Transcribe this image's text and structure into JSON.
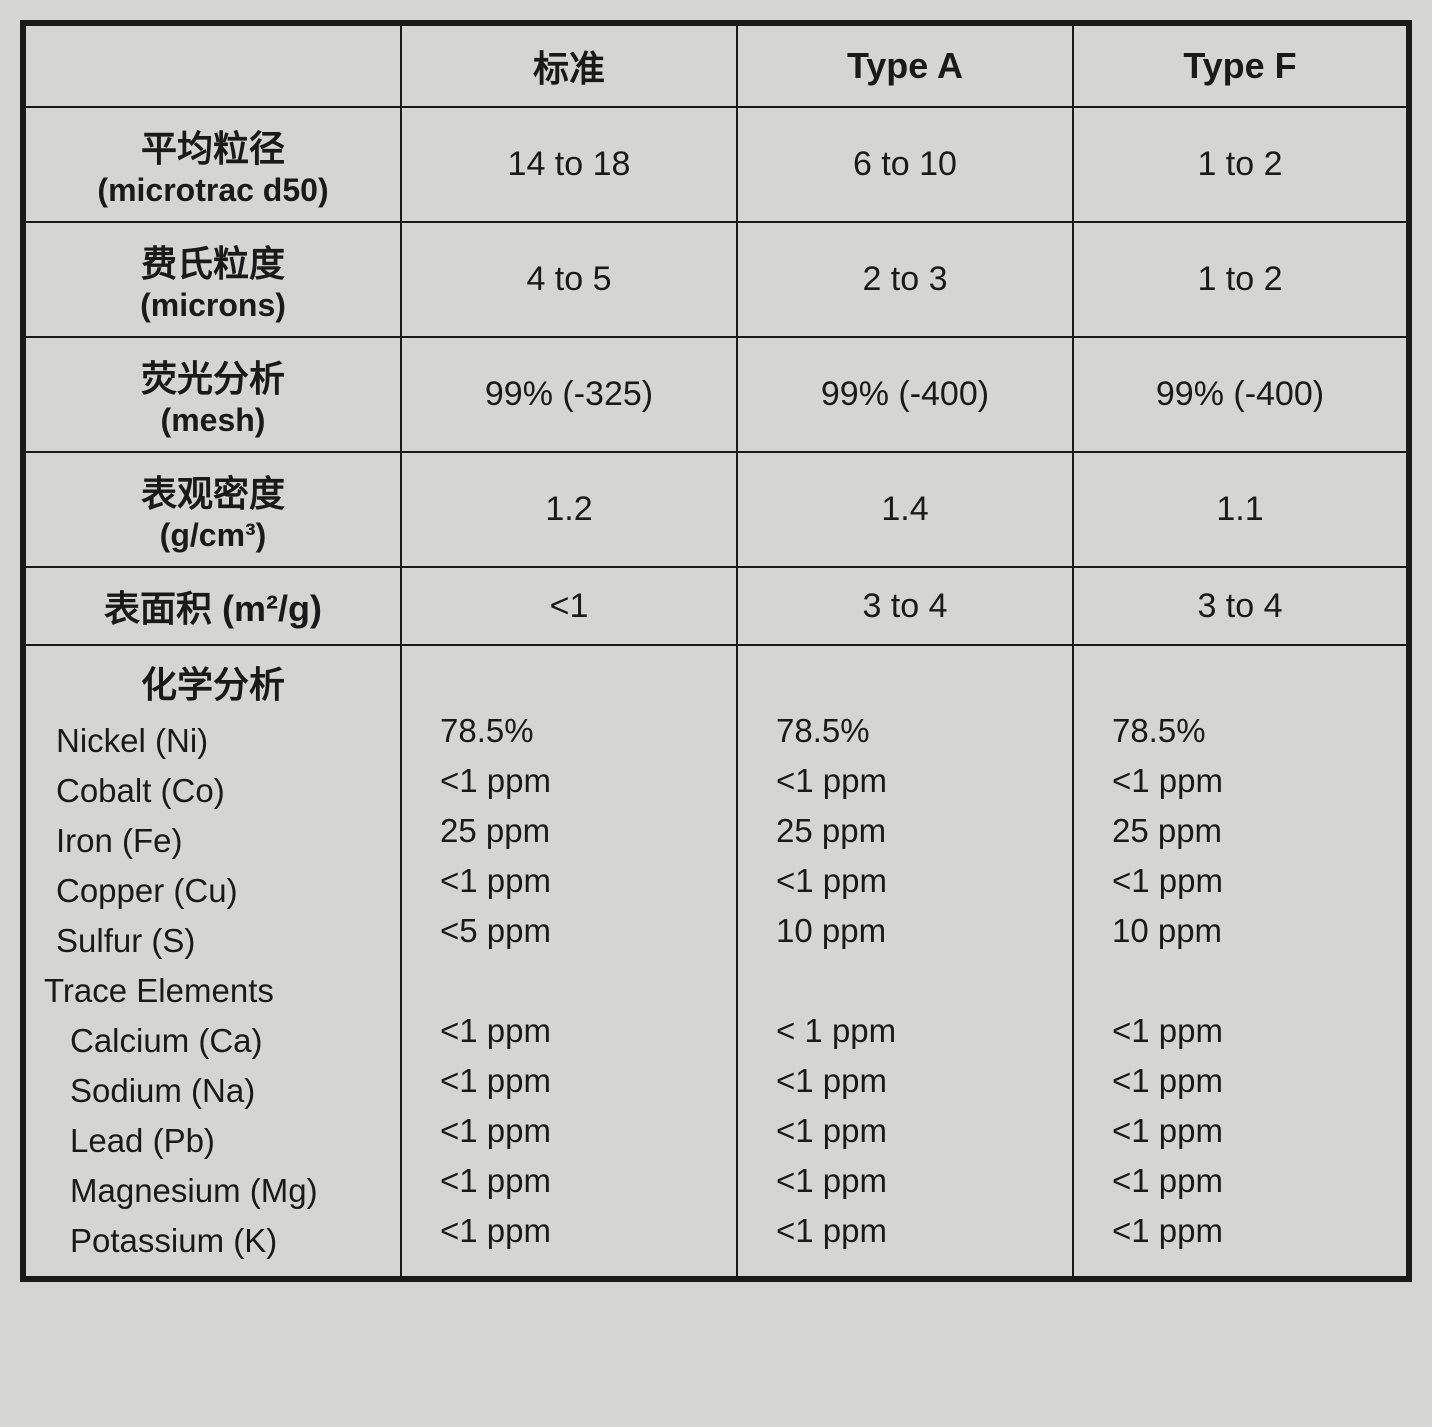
{
  "table": {
    "background_color": "#d5d5d3",
    "border_color": "#1a1a1a",
    "outer_border_width": 6,
    "inner_border_width": 2,
    "font_color": "#1a1a1a",
    "header_fontsize": 36,
    "body_fontsize": 34,
    "chem_fontsize": 33,
    "columns": [
      "",
      "标准",
      "Type A",
      "Type F"
    ],
    "column_widths_pct": [
      27,
      24,
      24,
      25
    ],
    "rows": [
      {
        "label_cn": "平均粒径",
        "label_sub": "(microtrac d50)",
        "values": [
          "14 to 18",
          "6 to 10",
          "1 to 2"
        ]
      },
      {
        "label_cn": "费氏粒度",
        "label_sub": "(microns)",
        "values": [
          "4 to 5",
          "2 to 3",
          "1 to 2"
        ]
      },
      {
        "label_cn": "荧光分析",
        "label_sub": "(mesh)",
        "values": [
          "99% (-325)",
          "99% (-400)",
          "99% (-400)"
        ]
      },
      {
        "label_cn": "表观密度",
        "label_sub": "(g/cm³)",
        "values": [
          "1.2",
          "1.4",
          "1.1"
        ]
      },
      {
        "label_cn": "表面积 (m²/g)",
        "label_sub": "",
        "values": [
          "<1",
          "3 to 4",
          "3 to 4"
        ]
      }
    ],
    "chemistry": {
      "title": "化学分析",
      "elements": [
        {
          "name": "Nickel (Ni)",
          "values": [
            "78.5%",
            "78.5%",
            "78.5%"
          ]
        },
        {
          "name": "Cobalt (Co)",
          "values": [
            "<1 ppm",
            "<1 ppm",
            "<1 ppm"
          ]
        },
        {
          "name": "Iron (Fe)",
          "values": [
            "25 ppm",
            "25 ppm",
            "25 ppm"
          ]
        },
        {
          "name": "Copper (Cu)",
          "values": [
            "<1 ppm",
            "<1 ppm",
            "<1 ppm"
          ]
        },
        {
          "name": "Sulfur (S)",
          "values": [
            "<5 ppm",
            "10 ppm",
            "10 ppm"
          ]
        }
      ],
      "trace_title": "Trace Elements",
      "trace": [
        {
          "name": "Calcium (Ca)",
          "values": [
            "<1 ppm",
            "< 1 ppm",
            "<1 ppm"
          ]
        },
        {
          "name": "Sodium (Na)",
          "values": [
            "<1 ppm",
            "<1 ppm",
            "<1 ppm"
          ]
        },
        {
          "name": "Lead (Pb)",
          "values": [
            "<1 ppm",
            "<1 ppm",
            "<1 ppm"
          ]
        },
        {
          "name": "Magnesium (Mg)",
          "values": [
            "<1 ppm",
            "<1 ppm",
            "<1 ppm"
          ]
        },
        {
          "name": "Potassium (K)",
          "values": [
            "<1 ppm",
            "<1 ppm",
            "<1 ppm"
          ]
        }
      ]
    }
  }
}
